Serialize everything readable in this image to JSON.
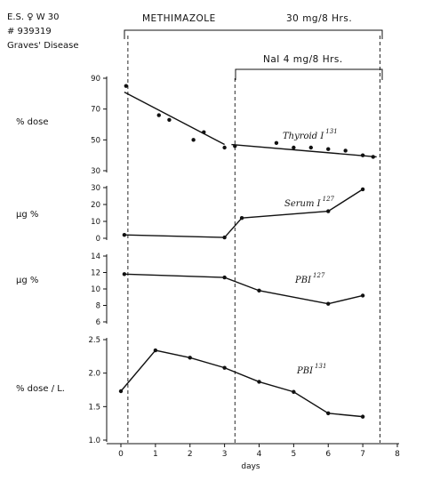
{
  "header": {
    "patient": "E.S. ♀ W 30",
    "number": "# 939319",
    "diagnosis": "Graves' Disease",
    "treatment1_drug": "METHIMAZOLE",
    "treatment1_dose": "30 mg/8 Hrs.",
    "treatment2": "NaI  4 mg/8 Hrs."
  },
  "chart_data": [
    {
      "type": "scatter",
      "title": "Thyroid I",
      "title_sup": "131",
      "ylabel": "% dose",
      "ylim": [
        30,
        90
      ],
      "yticks": [
        "30",
        "50",
        "70",
        "90"
      ],
      "points": [
        [
          0.15,
          85
        ],
        [
          1.1,
          66
        ],
        [
          1.4,
          63
        ],
        [
          2.1,
          50
        ],
        [
          2.4,
          55
        ],
        [
          3.0,
          45
        ],
        [
          3.3,
          46
        ],
        [
          4.5,
          48
        ],
        [
          5.0,
          45
        ],
        [
          5.5,
          45
        ],
        [
          6.0,
          44
        ],
        [
          6.5,
          43
        ],
        [
          7.0,
          40
        ],
        [
          7.3,
          39
        ]
      ],
      "fit_lines": [
        {
          "x": [
            0.1,
            3.0
          ],
          "y": [
            81,
            47
          ]
        },
        {
          "x": [
            3.2,
            7.4
          ],
          "y": [
            47,
            39
          ]
        }
      ]
    },
    {
      "type": "line",
      "title": "Serum I",
      "title_sup": "127",
      "ylabel": "µg %",
      "ylim": [
        0,
        30
      ],
      "yticks": [
        "0",
        "10",
        "20",
        "30"
      ],
      "x": [
        0.1,
        3.0,
        3.5,
        6.0,
        7.0
      ],
      "y": [
        2.0,
        0.5,
        12.0,
        16.0,
        29.0
      ]
    },
    {
      "type": "line",
      "title": "PBI",
      "title_sup": "127",
      "ylabel": "µg %",
      "ylim": [
        6,
        14
      ],
      "yticks": [
        "6",
        "8",
        "10",
        "12",
        "14"
      ],
      "x": [
        0.1,
        3.0,
        4.0,
        6.0,
        7.0
      ],
      "y": [
        11.8,
        11.4,
        9.8,
        8.2,
        9.2
      ]
    },
    {
      "type": "line",
      "title": "PBI",
      "title_sup": "131",
      "ylabel": "% dose / L.",
      "ylim": [
        1.0,
        2.5
      ],
      "yticks": [
        "1.0",
        "1.5",
        "2.0",
        "2.5"
      ],
      "x": [
        0,
        1,
        2,
        3,
        4,
        5,
        6,
        7
      ],
      "y": [
        1.73,
        2.34,
        2.23,
        2.08,
        1.87,
        1.72,
        1.4,
        1.35
      ]
    }
  ],
  "x_axis": {
    "label": "days",
    "ticks": [
      "0",
      "1",
      "2",
      "3",
      "4",
      "5",
      "6",
      "7",
      "8"
    ],
    "xlim": [
      0,
      8
    ]
  },
  "markers": {
    "methimazole_start": 0.1,
    "nai_start": 3.3,
    "end": 7.5
  }
}
